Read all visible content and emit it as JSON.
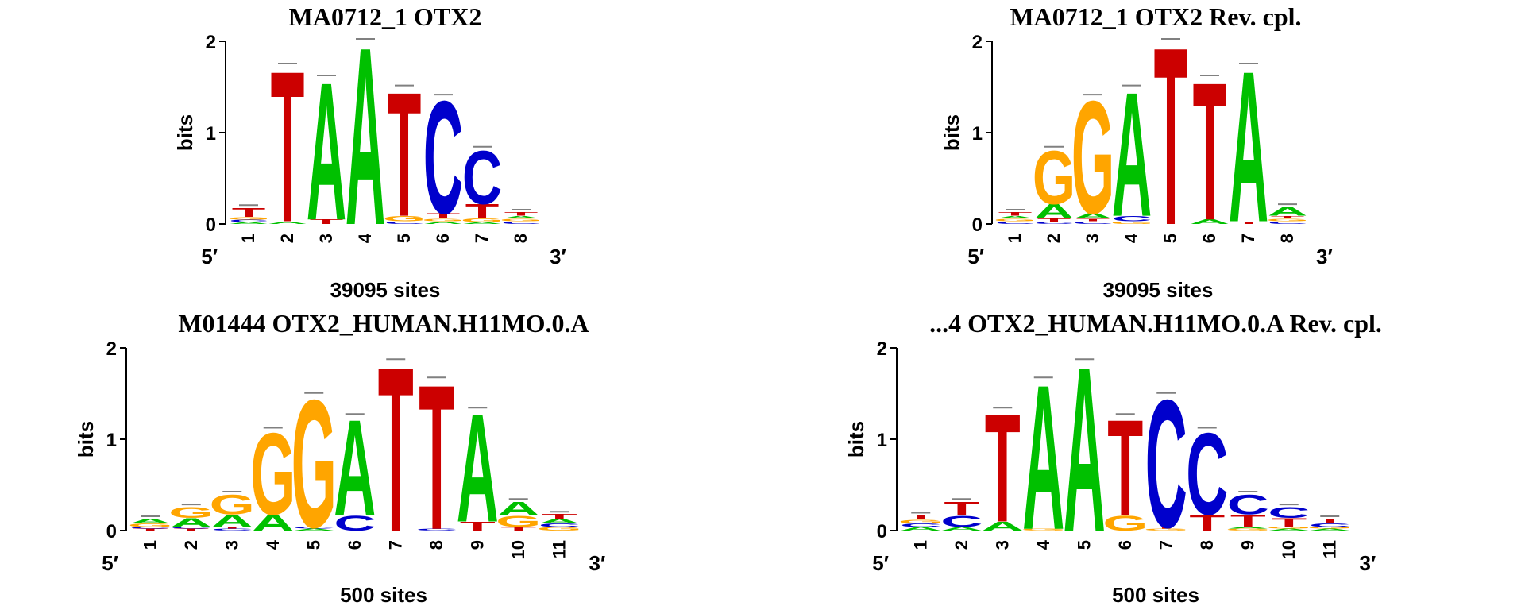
{
  "colors": {
    "A": "#00c000",
    "C": "#0000cc",
    "G": "#ffa500",
    "T": "#cc0000"
  },
  "chart_data": [
    {
      "type": "sequence-logo",
      "title": "MA0712_1 OTX2",
      "ylabel": "bits",
      "ylim": [
        0,
        2
      ],
      "yticks": [
        "0",
        "1",
        "2"
      ],
      "five_prime": "5′",
      "three_prime": "3′",
      "sites": "39095 sites",
      "positions": [
        {
          "label": "1",
          "stack": [
            [
              "A",
              0.02
            ],
            [
              "C",
              0.03
            ],
            [
              "G",
              0.03
            ],
            [
              "T",
              0.1
            ]
          ]
        },
        {
          "label": "2",
          "stack": [
            [
              "A",
              0.03
            ],
            [
              "T",
              1.7
            ]
          ]
        },
        {
          "label": "3",
          "stack": [
            [
              "T",
              0.05
            ],
            [
              "A",
              1.55
            ]
          ]
        },
        {
          "label": "4",
          "stack": [
            [
              "A",
              2.0
            ]
          ]
        },
        {
          "label": "5",
          "stack": [
            [
              "C",
              0.03
            ],
            [
              "G",
              0.06
            ],
            [
              "T",
              1.4
            ]
          ]
        },
        {
          "label": "6",
          "stack": [
            [
              "A",
              0.03
            ],
            [
              "G",
              0.03
            ],
            [
              "T",
              0.06
            ],
            [
              "C",
              1.27
            ]
          ]
        },
        {
          "label": "7",
          "stack": [
            [
              "A",
              0.02
            ],
            [
              "G",
              0.04
            ],
            [
              "T",
              0.16
            ],
            [
              "C",
              0.6
            ]
          ]
        },
        {
          "label": "8",
          "stack": [
            [
              "C",
              0.03
            ],
            [
              "G",
              0.03
            ],
            [
              "A",
              0.03
            ],
            [
              "T",
              0.04
            ]
          ]
        }
      ]
    },
    {
      "type": "sequence-logo",
      "title": "MA0712_1 OTX2  Rev. cpl.",
      "ylabel": "bits",
      "ylim": [
        0,
        2
      ],
      "yticks": [
        "0",
        "1",
        "2"
      ],
      "five_prime": "5′",
      "three_prime": "3′",
      "sites": "39095 sites",
      "positions": [
        {
          "label": "1",
          "stack": [
            [
              "C",
              0.03
            ],
            [
              "G",
              0.03
            ],
            [
              "A",
              0.03
            ],
            [
              "T",
              0.04
            ]
          ]
        },
        {
          "label": "2",
          "stack": [
            [
              "C",
              0.02
            ],
            [
              "T",
              0.04
            ],
            [
              "A",
              0.16
            ],
            [
              "G",
              0.6
            ]
          ]
        },
        {
          "label": "3",
          "stack": [
            [
              "C",
              0.03
            ],
            [
              "T",
              0.03
            ],
            [
              "A",
              0.06
            ],
            [
              "G",
              1.27
            ]
          ]
        },
        {
          "label": "4",
          "stack": [
            [
              "G",
              0.03
            ],
            [
              "C",
              0.06
            ],
            [
              "A",
              1.4
            ]
          ]
        },
        {
          "label": "5",
          "stack": [
            [
              "T",
              2.0
            ]
          ]
        },
        {
          "label": "6",
          "stack": [
            [
              "A",
              0.05
            ],
            [
              "T",
              1.55
            ]
          ]
        },
        {
          "label": "7",
          "stack": [
            [
              "T",
              0.03
            ],
            [
              "A",
              1.7
            ]
          ]
        },
        {
          "label": "8",
          "stack": [
            [
              "C",
              0.03
            ],
            [
              "G",
              0.03
            ],
            [
              "T",
              0.03
            ],
            [
              "A",
              0.1
            ]
          ]
        }
      ]
    },
    {
      "type": "sequence-logo",
      "title": "M01444 OTX2_HUMAN.H11MO.0.A",
      "ylabel": "bits",
      "ylim": [
        0,
        2
      ],
      "yticks": [
        "0",
        "1",
        "2"
      ],
      "five_prime": "5′",
      "three_prime": "3′",
      "sites": "500 sites",
      "positions": [
        {
          "label": "1",
          "stack": [
            [
              "T",
              0.02
            ],
            [
              "C",
              0.02
            ],
            [
              "G",
              0.04
            ],
            [
              "A",
              0.05
            ]
          ]
        },
        {
          "label": "2",
          "stack": [
            [
              "T",
              0.02
            ],
            [
              "C",
              0.02
            ],
            [
              "A",
              0.1
            ],
            [
              "G",
              0.12
            ]
          ]
        },
        {
          "label": "3",
          "stack": [
            [
              "C",
              0.02
            ],
            [
              "T",
              0.02
            ],
            [
              "A",
              0.14
            ],
            [
              "G",
              0.22
            ]
          ]
        },
        {
          "label": "4",
          "stack": [
            [
              "A",
              0.18
            ],
            [
              "G",
              0.92
            ]
          ]
        },
        {
          "label": "5",
          "stack": [
            [
              "A",
              0.02
            ],
            [
              "C",
              0.02
            ],
            [
              "G",
              1.44
            ]
          ]
        },
        {
          "label": "6",
          "stack": [
            [
              "C",
              0.17
            ],
            [
              "A",
              1.08
            ]
          ]
        },
        {
          "label": "7",
          "stack": [
            [
              "T",
              1.85
            ]
          ]
        },
        {
          "label": "8",
          "stack": [
            [
              "C",
              0.02
            ],
            [
              "T",
              1.63
            ]
          ]
        },
        {
          "label": "9",
          "stack": [
            [
              "T",
              0.1
            ],
            [
              "A",
              1.22
            ]
          ]
        },
        {
          "label": "10",
          "stack": [
            [
              "T",
              0.04
            ],
            [
              "G",
              0.13
            ],
            [
              "A",
              0.15
            ]
          ]
        },
        {
          "label": "11",
          "stack": [
            [
              "G",
              0.04
            ],
            [
              "C",
              0.04
            ],
            [
              "A",
              0.05
            ],
            [
              "T",
              0.05
            ]
          ]
        }
      ]
    },
    {
      "type": "sequence-logo",
      "title": "...4 OTX2_HUMAN.H11MO.0.A  Rev. cpl.",
      "ylabel": "bits",
      "ylim": [
        0,
        2
      ],
      "yticks": [
        "0",
        "1",
        "2"
      ],
      "five_prime": "5′",
      "three_prime": "3′",
      "sites": "500 sites",
      "positions": [
        {
          "label": "1",
          "stack": [
            [
              "A",
              0.04
            ],
            [
              "C",
              0.04
            ],
            [
              "G",
              0.04
            ],
            [
              "T",
              0.05
            ]
          ]
        },
        {
          "label": "2",
          "stack": [
            [
              "A",
              0.04
            ],
            [
              "C",
              0.13
            ],
            [
              "T",
              0.15
            ]
          ]
        },
        {
          "label": "3",
          "stack": [
            [
              "A",
              0.1
            ],
            [
              "T",
              1.22
            ]
          ]
        },
        {
          "label": "4",
          "stack": [
            [
              "G",
              0.02
            ],
            [
              "A",
              1.63
            ]
          ]
        },
        {
          "label": "5",
          "stack": [
            [
              "A",
              1.85
            ]
          ]
        },
        {
          "label": "6",
          "stack": [
            [
              "G",
              0.17
            ],
            [
              "T",
              1.08
            ]
          ]
        },
        {
          "label": "7",
          "stack": [
            [
              "G",
              0.02
            ],
            [
              "T",
              0.02
            ],
            [
              "C",
              1.44
            ]
          ]
        },
        {
          "label": "8",
          "stack": [
            [
              "T",
              0.18
            ],
            [
              "C",
              0.92
            ]
          ]
        },
        {
          "label": "9",
          "stack": [
            [
              "G",
              0.02
            ],
            [
              "A",
              0.02
            ],
            [
              "T",
              0.14
            ],
            [
              "C",
              0.22
            ]
          ]
        },
        {
          "label": "10",
          "stack": [
            [
              "A",
              0.02
            ],
            [
              "G",
              0.02
            ],
            [
              "T",
              0.1
            ],
            [
              "C",
              0.12
            ]
          ]
        },
        {
          "label": "11",
          "stack": [
            [
              "A",
              0.02
            ],
            [
              "G",
              0.02
            ],
            [
              "C",
              0.04
            ],
            [
              "T",
              0.05
            ]
          ]
        }
      ]
    }
  ]
}
